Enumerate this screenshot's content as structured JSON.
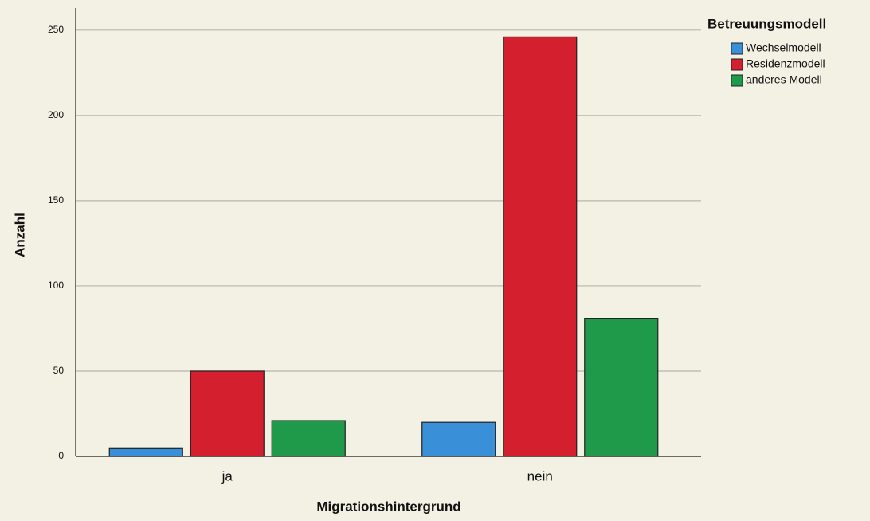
{
  "chart_data": {
    "type": "bar",
    "x_label": "Migrationshintergrund",
    "y_label": "Anzahl",
    "legend_title": "Betreuungsmodell",
    "legend": "top-right",
    "categories": [
      "ja",
      "nein"
    ],
    "series": [
      {
        "name": "Wechselmodell",
        "color": "#3a8fd9",
        "values": [
          5,
          20
        ]
      },
      {
        "name": "Residenzmodell",
        "color": "#d4202e",
        "values": [
          50,
          246
        ]
      },
      {
        "name": "anderes Modell",
        "color": "#1f9a4a",
        "values": [
          21,
          81
        ]
      }
    ],
    "ylim": [
      0,
      263
    ],
    "yticks": [
      0,
      50,
      100,
      150,
      200,
      250
    ],
    "grid": true
  }
}
